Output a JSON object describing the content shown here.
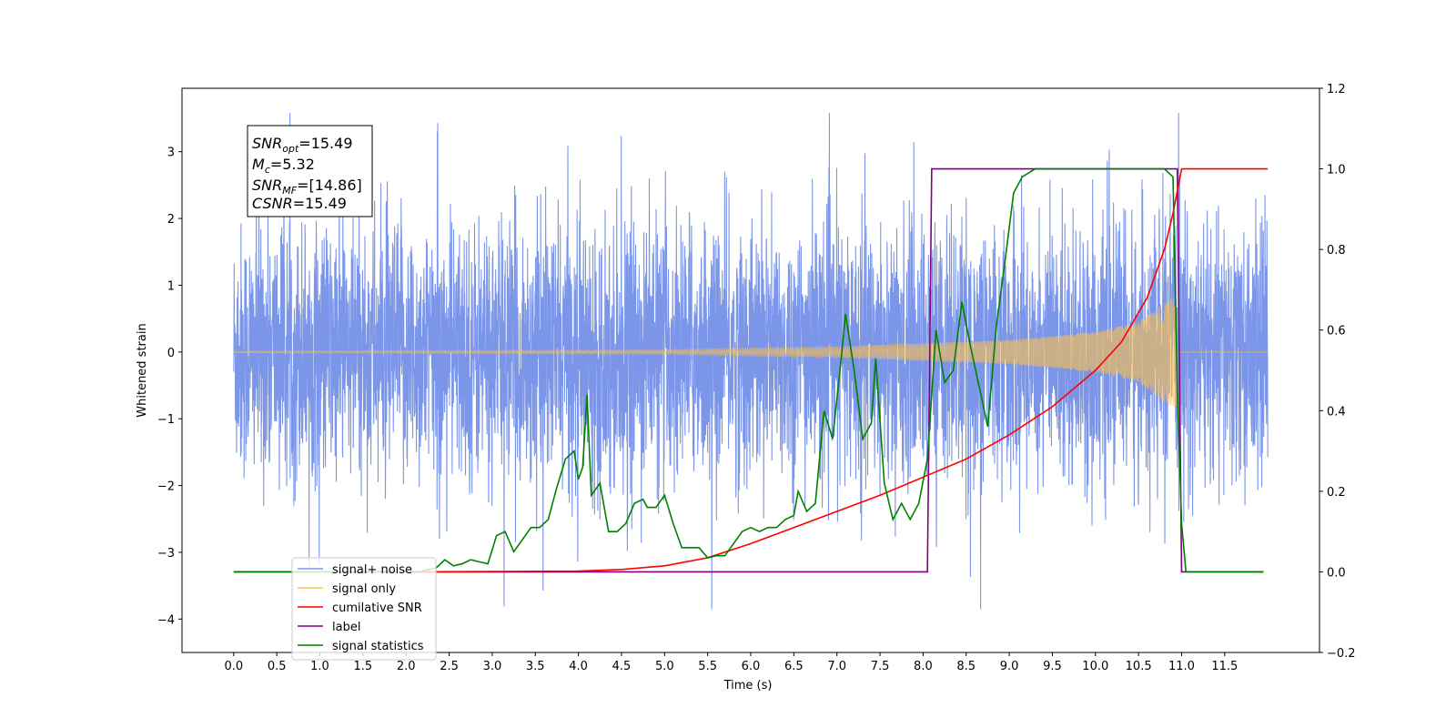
{
  "chart_data": {
    "type": "line",
    "xlabel": "Time (s)",
    "ylabel": "Whitened strain",
    "xlim": [
      -0.6,
      12.6
    ],
    "ylim": [
      -4.5,
      3.95
    ],
    "y2lim": [
      -0.2,
      1.2
    ],
    "x_ticks": [
      0.0,
      0.5,
      1.0,
      1.5,
      2.0,
      2.5,
      3.0,
      3.5,
      4.0,
      4.5,
      5.0,
      5.5,
      6.0,
      6.5,
      7.0,
      7.5,
      8.0,
      8.5,
      9.0,
      9.5,
      10.0,
      10.5,
      11.0,
      11.5
    ],
    "x_tick_labels": [
      "0.0",
      "0.5",
      "1.0",
      "1.5",
      "2.0",
      "2.5",
      "3.0",
      "3.5",
      "4.0",
      "4.5",
      "5.0",
      "5.5",
      "6.0",
      "6.5",
      "7.0",
      "7.5",
      "8.0",
      "8.5",
      "9.0",
      "9.5",
      "10.0",
      "10.5",
      "11.0",
      "11.5"
    ],
    "y_ticks": [
      -4,
      -3,
      -2,
      -1,
      0,
      1,
      2,
      3
    ],
    "y_tick_labels": [
      "−4",
      "−3",
      "−2",
      "−1",
      "0",
      "1",
      "2",
      "3"
    ],
    "y2_ticks": [
      -0.2,
      0.0,
      0.2,
      0.4,
      0.6,
      0.8,
      1.0,
      1.2
    ],
    "y2_tick_labels": [
      "−0.2",
      "0.0",
      "0.2",
      "0.4",
      "0.6",
      "0.8",
      "1.0",
      "1.2"
    ],
    "grid": false,
    "legend_position": "lower-left",
    "annotation": {
      "lines": [
        {
          "main": "SNR",
          "sub": "opt",
          "rest": "=15.49"
        },
        {
          "main": "M",
          "sub": "c",
          "rest": "=5.32"
        },
        {
          "main": "SNR",
          "sub": "MF",
          "rest": "=[14.86]"
        },
        {
          "main": "CSNR",
          "sub": "",
          "rest": "=15.49"
        }
      ]
    },
    "series": [
      {
        "name": "signal+ noise",
        "axis": "left",
        "color": "#7b96e8",
        "x_range": [
          0.0,
          12.0
        ],
        "envelope_upper": 2.5,
        "envelope_lower": -2.4,
        "peak_max": 3.58,
        "peak_min": -3.85
      },
      {
        "name": "signal only",
        "axis": "left",
        "color": "#ffc04d",
        "chirp_start": 0.0,
        "chirp_end": 10.95,
        "amplitude_at": [
          [
            0.0,
            0.01
          ],
          [
            5.0,
            0.03
          ],
          [
            7.0,
            0.08
          ],
          [
            9.0,
            0.18
          ],
          [
            10.0,
            0.3
          ],
          [
            10.5,
            0.45
          ],
          [
            10.8,
            0.75
          ],
          [
            10.95,
            0.85
          ]
        ]
      },
      {
        "name": "cumilative SNR",
        "axis": "right",
        "color": "#ff0000",
        "points": [
          [
            2.0,
            0.0
          ],
          [
            3.0,
            0.001
          ],
          [
            4.0,
            0.002
          ],
          [
            4.5,
            0.006
          ],
          [
            5.0,
            0.015
          ],
          [
            5.5,
            0.035
          ],
          [
            6.0,
            0.07
          ],
          [
            6.5,
            0.11
          ],
          [
            7.0,
            0.15
          ],
          [
            7.5,
            0.19
          ],
          [
            8.0,
            0.235
          ],
          [
            8.5,
            0.28
          ],
          [
            9.0,
            0.34
          ],
          [
            9.5,
            0.41
          ],
          [
            10.0,
            0.5
          ],
          [
            10.3,
            0.57
          ],
          [
            10.6,
            0.68
          ],
          [
            10.8,
            0.8
          ],
          [
            10.9,
            0.89
          ],
          [
            11.0,
            1.0
          ],
          [
            12.0,
            1.0
          ]
        ]
      },
      {
        "name": "label",
        "axis": "right",
        "color": "#800080",
        "points": [
          [
            0.0,
            0.0
          ],
          [
            8.05,
            0.0
          ],
          [
            8.1,
            1.0
          ],
          [
            10.95,
            1.0
          ],
          [
            11.0,
            0.0
          ],
          [
            11.95,
            0.0
          ]
        ]
      },
      {
        "name": "signal statistics",
        "axis": "right",
        "color": "#008000",
        "points": [
          [
            0.0,
            0.0
          ],
          [
            2.15,
            0.0
          ],
          [
            2.25,
            0.005
          ],
          [
            2.35,
            0.01
          ],
          [
            2.45,
            0.03
          ],
          [
            2.55,
            0.015
          ],
          [
            2.65,
            0.02
          ],
          [
            2.75,
            0.03
          ],
          [
            2.85,
            0.025
          ],
          [
            2.95,
            0.02
          ],
          [
            3.05,
            0.09
          ],
          [
            3.15,
            0.1
          ],
          [
            3.25,
            0.05
          ],
          [
            3.35,
            0.08
          ],
          [
            3.45,
            0.11
          ],
          [
            3.55,
            0.11
          ],
          [
            3.65,
            0.13
          ],
          [
            3.75,
            0.21
          ],
          [
            3.85,
            0.28
          ],
          [
            3.95,
            0.3
          ],
          [
            4.0,
            0.23
          ],
          [
            4.05,
            0.26
          ],
          [
            4.1,
            0.44
          ],
          [
            4.15,
            0.19
          ],
          [
            4.25,
            0.22
          ],
          [
            4.35,
            0.1
          ],
          [
            4.45,
            0.1
          ],
          [
            4.55,
            0.12
          ],
          [
            4.65,
            0.17
          ],
          [
            4.75,
            0.18
          ],
          [
            4.8,
            0.16
          ],
          [
            4.9,
            0.16
          ],
          [
            5.0,
            0.19
          ],
          [
            5.1,
            0.12
          ],
          [
            5.2,
            0.06
          ],
          [
            5.3,
            0.06
          ],
          [
            5.4,
            0.06
          ],
          [
            5.5,
            0.035
          ],
          [
            5.6,
            0.04
          ],
          [
            5.7,
            0.04
          ],
          [
            5.8,
            0.07
          ],
          [
            5.9,
            0.1
          ],
          [
            6.0,
            0.11
          ],
          [
            6.1,
            0.1
          ],
          [
            6.2,
            0.11
          ],
          [
            6.3,
            0.11
          ],
          [
            6.4,
            0.13
          ],
          [
            6.5,
            0.14
          ],
          [
            6.55,
            0.2
          ],
          [
            6.65,
            0.15
          ],
          [
            6.75,
            0.17
          ],
          [
            6.85,
            0.4
          ],
          [
            6.95,
            0.33
          ],
          [
            7.05,
            0.53
          ],
          [
            7.1,
            0.64
          ],
          [
            7.2,
            0.5
          ],
          [
            7.3,
            0.33
          ],
          [
            7.4,
            0.37
          ],
          [
            7.45,
            0.53
          ],
          [
            7.55,
            0.22
          ],
          [
            7.65,
            0.13
          ],
          [
            7.75,
            0.17
          ],
          [
            7.85,
            0.13
          ],
          [
            7.95,
            0.17
          ],
          [
            8.05,
            0.28
          ],
          [
            8.15,
            0.6
          ],
          [
            8.25,
            0.47
          ],
          [
            8.35,
            0.5
          ],
          [
            8.45,
            0.67
          ],
          [
            8.55,
            0.56
          ],
          [
            8.65,
            0.46
          ],
          [
            8.75,
            0.36
          ],
          [
            8.85,
            0.61
          ],
          [
            8.95,
            0.77
          ],
          [
            9.05,
            0.94
          ],
          [
            9.15,
            0.98
          ],
          [
            9.3,
            1.0
          ],
          [
            10.8,
            1.0
          ],
          [
            10.9,
            0.98
          ],
          [
            10.95,
            0.45
          ],
          [
            11.0,
            0.12
          ],
          [
            11.05,
            0.0
          ],
          [
            11.95,
            0.0
          ]
        ]
      }
    ]
  }
}
